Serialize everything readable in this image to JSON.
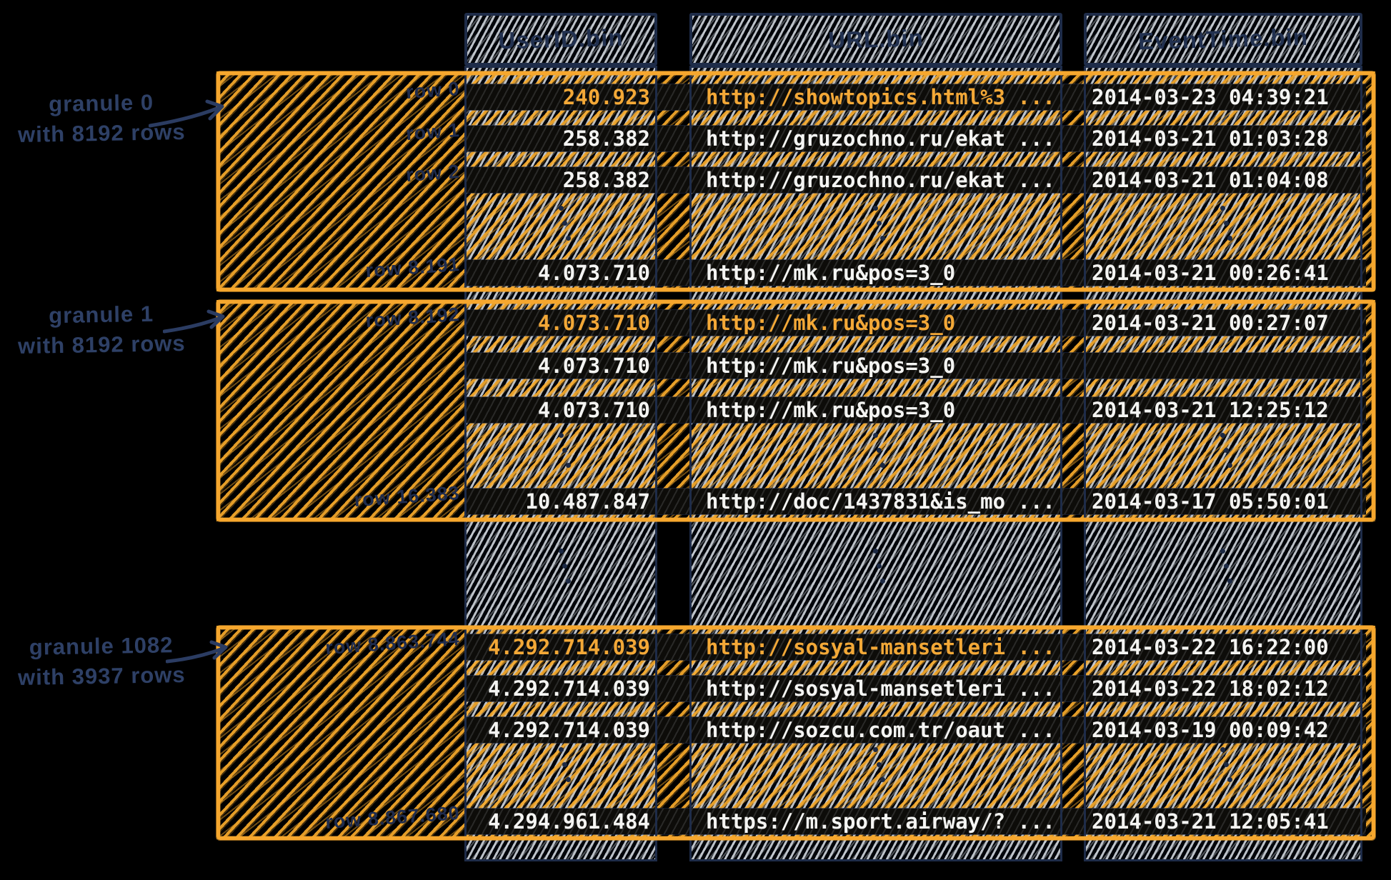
{
  "columns": [
    {
      "label": "UserID.bin"
    },
    {
      "label": "URL.bin"
    },
    {
      "label": "EventTime.bin"
    }
  ],
  "annotations": [
    {
      "line1": "granule 0",
      "line2": "with 8192 rows"
    },
    {
      "line1": "granule 1",
      "line2": "with 8192 rows"
    },
    {
      "line1": "granule 1082",
      "line2": "with 3937 rows"
    }
  ],
  "granules": [
    {
      "name": "granule 0",
      "rows": [
        {
          "label": "row 0",
          "highlight": true,
          "user_id": "240.923",
          "url": "http://showtopics.html%3 ...",
          "event_time": "2014-03-23 04:39:21"
        },
        {
          "label": "row 1",
          "highlight": false,
          "user_id": "258.382",
          "url": "http://gruzochno.ru/ekat ...",
          "event_time": "2014-03-21 01:03:28"
        },
        {
          "label": "row 2",
          "highlight": false,
          "user_id": "258.382",
          "url": "http://gruzochno.ru/ekat ...",
          "event_time": "2014-03-21 01:04:08"
        },
        {
          "label": "row 8.191",
          "highlight": false,
          "user_id": "4.073.710",
          "url": "http://mk.ru&pos=3_0",
          "event_time": "2014-03-21 00:26:41"
        }
      ]
    },
    {
      "name": "granule 1",
      "rows": [
        {
          "label": "row 8.192",
          "highlight": true,
          "user_id": "4.073.710",
          "url": "http://mk.ru&pos=3_0",
          "event_time": "2014-03-21 00:27:07"
        },
        {
          "label": "",
          "highlight": false,
          "user_id": "4.073.710",
          "url": "http://mk.ru&pos=3_0",
          "event_time": ""
        },
        {
          "label": "",
          "highlight": false,
          "user_id": "4.073.710",
          "url": "http://mk.ru&pos=3_0",
          "event_time": "2014-03-21 12:25:12"
        },
        {
          "label": "row 16.383",
          "highlight": false,
          "user_id": "10.487.847",
          "url": "http://doc/1437831&is_mo ...",
          "event_time": "2014-03-17 05:50:01"
        }
      ]
    },
    {
      "name": "granule 1082",
      "rows": [
        {
          "label": "row 8.863.744",
          "highlight": true,
          "user_id": "4.292.714.039",
          "url": "http://sosyal-mansetleri ...",
          "event_time": "2014-03-22 16:22:00"
        },
        {
          "label": "",
          "highlight": false,
          "user_id": "4.292.714.039",
          "url": "http://sosyal-mansetleri ...",
          "event_time": "2014-03-22 18:02:12"
        },
        {
          "label": "",
          "highlight": false,
          "user_id": "4.292.714.039",
          "url": "http://sozcu.com.tr/oaut ...",
          "event_time": "2014-03-19 00:09:42"
        },
        {
          "label": "row 8.867.680",
          "highlight": false,
          "user_id": "4.294.961.484",
          "url": "https://m.sport.airway/? ...",
          "event_time": "2014-03-21 12:05:41"
        }
      ]
    }
  ],
  "colors": {
    "background": "#000000",
    "accent_orange": "#F6A72E",
    "ink_navy": "#233254",
    "hatch_grey": "#D4D9E0",
    "data_text_white": "#F4F4F2",
    "data_text_highlight": "#F3A837"
  }
}
